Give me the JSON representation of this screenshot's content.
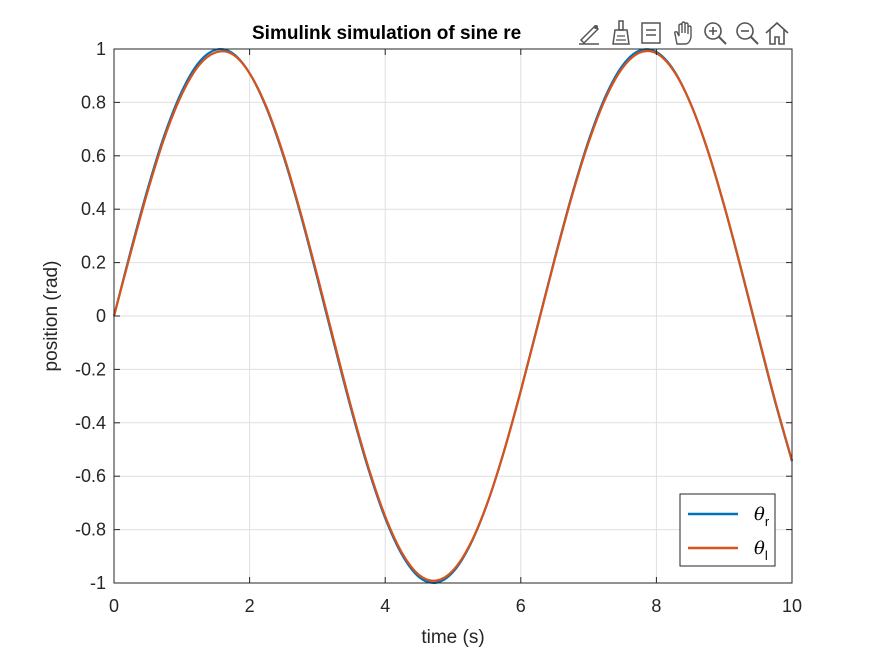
{
  "chart_data": {
    "type": "line",
    "title": "Simulink simulation of sine re",
    "xlabel": "time (s)",
    "ylabel": "position (rad)",
    "xlim": [
      0,
      10
    ],
    "ylim": [
      -1,
      1
    ],
    "xticks": [
      "0",
      "2",
      "4",
      "6",
      "8",
      "10"
    ],
    "yticks": [
      "1",
      "0.8",
      "0.6",
      "0.4",
      "0.2",
      "0",
      "-0.2",
      "-0.4",
      "-0.6",
      "-0.8",
      "-1"
    ],
    "grid": true,
    "legend_position": "bottom-right",
    "series": [
      {
        "name": "θr",
        "color": "#0072BD",
        "x": [
          0,
          0.25,
          0.5,
          0.75,
          1.0,
          1.25,
          1.5,
          1.75,
          2.0,
          2.25,
          2.5,
          2.75,
          3.0,
          3.25,
          3.5,
          3.75,
          4.0,
          4.25,
          4.5,
          4.75,
          5.0,
          5.25,
          5.5,
          5.75,
          6.0,
          6.25,
          6.5,
          6.75,
          7.0,
          7.25,
          7.5,
          7.75,
          8.0,
          8.25,
          8.5,
          8.75,
          9.0,
          9.25,
          9.5,
          9.75,
          10.0
        ],
        "y": [
          0,
          0.247,
          0.479,
          0.682,
          0.841,
          0.949,
          0.997,
          0.984,
          0.909,
          0.778,
          0.598,
          0.382,
          0.141,
          -0.108,
          -0.351,
          -0.572,
          -0.757,
          -0.895,
          -0.978,
          -0.999,
          -0.959,
          -0.859,
          -0.706,
          -0.508,
          -0.279,
          -0.033,
          0.215,
          0.45,
          0.657,
          0.823,
          0.938,
          0.994,
          0.989,
          0.923,
          0.798,
          0.625,
          0.412,
          0.174,
          -0.075,
          -0.32,
          -0.544
        ]
      },
      {
        "name": "θl",
        "color": "#D95319",
        "x": [
          0,
          0.25,
          0.5,
          0.75,
          1.0,
          1.25,
          1.5,
          1.75,
          2.0,
          2.25,
          2.5,
          2.75,
          3.0,
          3.25,
          3.5,
          3.75,
          4.0,
          4.25,
          4.5,
          4.75,
          5.0,
          5.25,
          5.5,
          5.75,
          6.0,
          6.25,
          6.5,
          6.75,
          7.0,
          7.25,
          7.5,
          7.75,
          8.0,
          8.25,
          8.5,
          8.75,
          9.0,
          9.25,
          9.5,
          9.75,
          10.0
        ],
        "y": [
          0,
          0.24,
          0.47,
          0.672,
          0.83,
          0.938,
          0.987,
          0.98,
          0.909,
          0.782,
          0.604,
          0.389,
          0.15,
          -0.099,
          -0.343,
          -0.565,
          -0.75,
          -0.888,
          -0.97,
          -0.991,
          -0.953,
          -0.856,
          -0.705,
          -0.509,
          -0.281,
          -0.036,
          0.211,
          0.445,
          0.65,
          0.815,
          0.929,
          0.986,
          0.984,
          0.92,
          0.798,
          0.626,
          0.414,
          0.177,
          -0.071,
          -0.316,
          -0.541
        ]
      }
    ]
  },
  "toolbar": {
    "icons": [
      "data-tips-icon",
      "brush-icon",
      "link-icon",
      "pan-icon",
      "zoom-in-icon",
      "zoom-out-icon",
      "home-icon"
    ]
  }
}
